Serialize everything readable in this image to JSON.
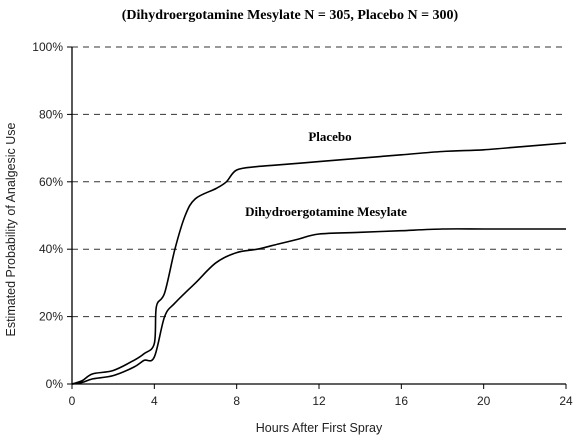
{
  "chart_data": {
    "type": "line",
    "title": "(Dihydroergotamine  Mesylate  N = 305, Placebo N = 300)",
    "xlabel": "Hours After First Spray",
    "ylabel": "Estimated Probability of Analgesic Use",
    "xlim": [
      0,
      24
    ],
    "ylim": [
      0,
      100
    ],
    "x_ticks": [
      "0",
      "4",
      "8",
      "12",
      "16",
      "20",
      "24"
    ],
    "y_ticks": [
      "0%",
      "20%",
      "40%",
      "60%",
      "80%",
      "100%"
    ],
    "y_tick_values": [
      0,
      20,
      40,
      60,
      80,
      100
    ],
    "x_tick_values": [
      0,
      4,
      8,
      12,
      16,
      20,
      24
    ],
    "grid": "horizontal dashed",
    "legend": "inline labels",
    "series": [
      {
        "name": "Placebo",
        "color": "#000000",
        "x": [
          0,
          0.5,
          1,
          2,
          3,
          3.5,
          4,
          4.1,
          4.5,
          5,
          5.5,
          6,
          7,
          7.5,
          8,
          9,
          10,
          12,
          14,
          16,
          18,
          20,
          22,
          24
        ],
        "y": [
          0,
          1,
          3,
          4,
          7,
          9,
          12,
          23,
          27,
          40,
          50,
          55,
          58,
          60,
          63.5,
          64.5,
          65,
          66,
          67,
          68,
          69,
          69.5,
          70.5,
          71.5
        ]
      },
      {
        "name": "Dihydroergotamine  Mesylate",
        "color": "#000000",
        "x": [
          0,
          0.5,
          1,
          2,
          3,
          3.5,
          4,
          4.5,
          5,
          6,
          7,
          8,
          9,
          10,
          11,
          12,
          14,
          16,
          18,
          20,
          22,
          24
        ],
        "y": [
          0,
          0.5,
          1.5,
          2.5,
          5,
          7,
          8,
          20,
          24,
          30,
          36,
          39,
          40,
          41.5,
          43,
          44.5,
          45,
          45.5,
          46,
          46,
          46,
          46
        ]
      }
    ],
    "annotations": [
      "Placebo",
      "Dihydroergotamine  Mesylate"
    ]
  }
}
